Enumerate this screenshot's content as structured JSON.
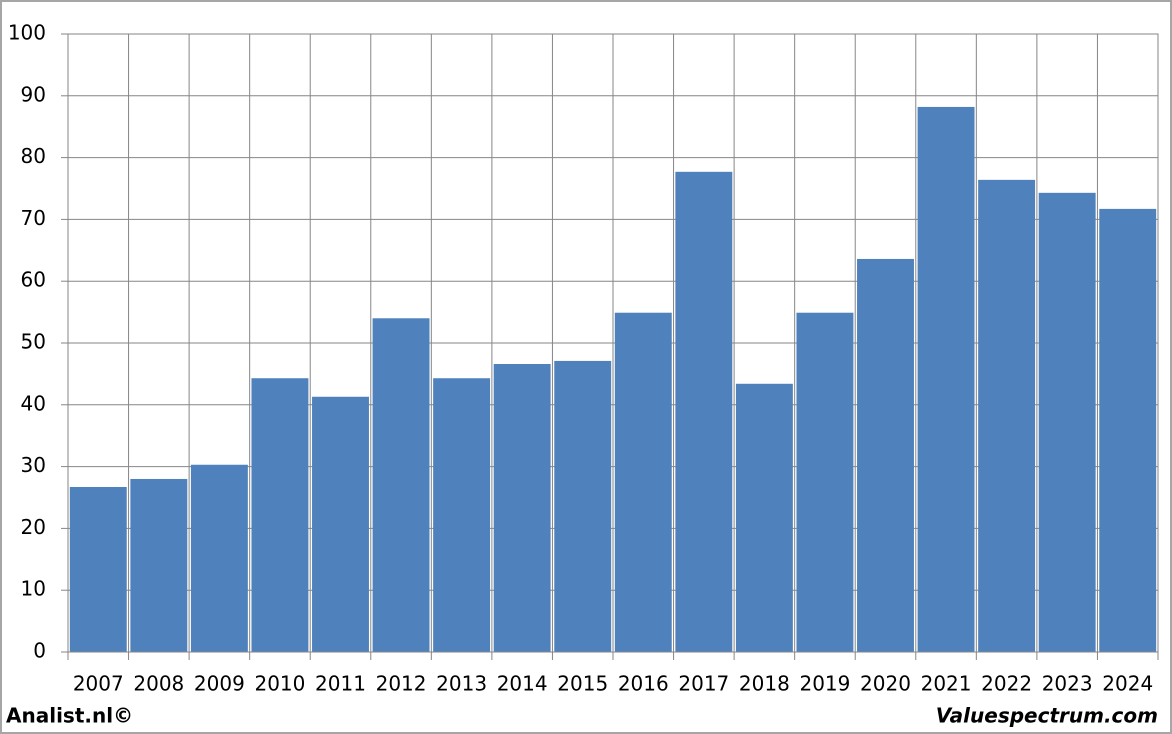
{
  "chart_data": {
    "type": "bar",
    "categories": [
      "2007",
      "2008",
      "2009",
      "2010",
      "2011",
      "2012",
      "2013",
      "2014",
      "2015",
      "2016",
      "2017",
      "2018",
      "2019",
      "2020",
      "2021",
      "2022",
      "2023",
      "2024"
    ],
    "values": [
      26.7,
      28.0,
      30.3,
      44.3,
      41.3,
      54.0,
      44.3,
      46.6,
      47.1,
      54.9,
      77.7,
      43.4,
      54.9,
      63.6,
      88.2,
      76.4,
      74.3,
      71.7
    ],
    "color": "#4f81bd",
    "ylim": [
      0,
      100
    ],
    "yticks": [
      0,
      10,
      20,
      30,
      40,
      50,
      60,
      70,
      80,
      90,
      100
    ],
    "grid": true
  },
  "footer": {
    "left": "Analist.nl©",
    "right": "Valuespectrum.com"
  }
}
